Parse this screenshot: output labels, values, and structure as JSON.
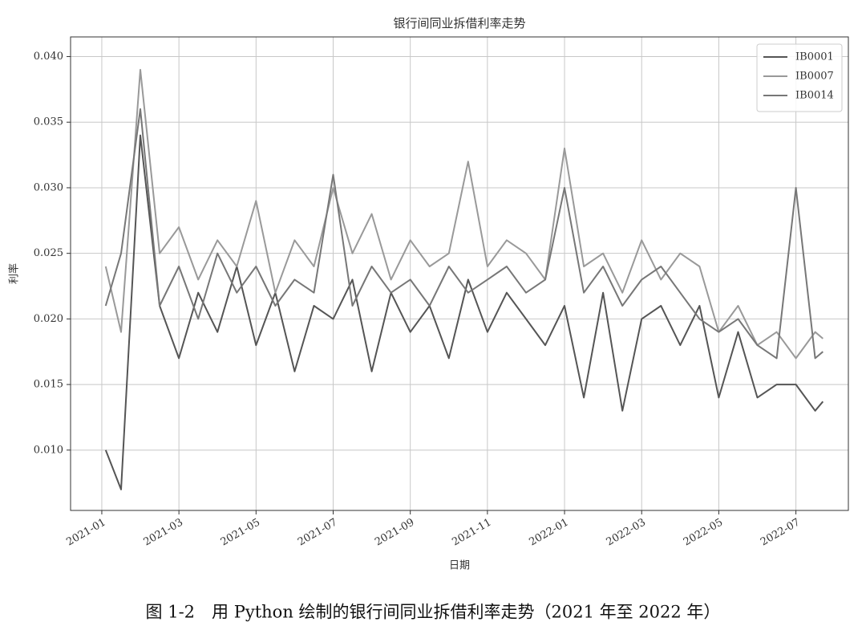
{
  "chart_data": {
    "type": "line",
    "title": "银行间同业拆借利率走势",
    "x_label": "日期",
    "y_label": "利率",
    "caption": "图 1-2　用 Python 绘制的银行间同业拆借利率走势（2021 年至 2022 年）",
    "x": [
      0.1,
      0.5,
      1,
      1.5,
      2,
      2.5,
      3,
      3.5,
      4,
      4.5,
      5,
      5.5,
      6,
      6.5,
      7,
      7.5,
      8,
      8.5,
      9,
      9.5,
      10,
      10.5,
      11,
      11.5,
      12,
      12.5,
      13,
      13.5,
      14,
      14.5,
      15,
      15.5,
      16,
      16.5,
      17,
      17.5,
      18,
      18.5,
      18.7
    ],
    "series": [
      {
        "name": "IB0001",
        "color": "#555555",
        "values": [
          0.01,
          0.007,
          0.034,
          0.021,
          0.017,
          0.022,
          0.019,
          0.024,
          0.018,
          0.022,
          0.016,
          0.021,
          0.02,
          0.023,
          0.016,
          0.022,
          0.019,
          0.021,
          0.017,
          0.023,
          0.019,
          0.022,
          0.02,
          0.018,
          0.021,
          0.014,
          0.022,
          0.013,
          0.02,
          0.021,
          0.018,
          0.021,
          0.014,
          0.019,
          0.014,
          0.015,
          0.015,
          0.013,
          0.0137
        ]
      },
      {
        "name": "IB0007",
        "color": "#999999",
        "values": [
          0.024,
          0.019,
          0.039,
          0.025,
          0.027,
          0.023,
          0.026,
          0.024,
          0.029,
          0.022,
          0.026,
          0.024,
          0.03,
          0.025,
          0.028,
          0.023,
          0.026,
          0.024,
          0.025,
          0.032,
          0.024,
          0.026,
          0.025,
          0.023,
          0.033,
          0.024,
          0.025,
          0.022,
          0.026,
          0.023,
          0.025,
          0.024,
          0.019,
          0.021,
          0.018,
          0.019,
          0.017,
          0.019,
          0.0185
        ]
      },
      {
        "name": "IB0014",
        "color": "#777777",
        "values": [
          0.021,
          0.025,
          0.036,
          0.021,
          0.024,
          0.02,
          0.025,
          0.022,
          0.024,
          0.021,
          0.023,
          0.022,
          0.031,
          0.021,
          0.024,
          0.022,
          0.023,
          0.021,
          0.024,
          0.022,
          0.023,
          0.024,
          0.022,
          0.023,
          0.03,
          0.022,
          0.024,
          0.021,
          0.023,
          0.024,
          0.022,
          0.02,
          0.019,
          0.02,
          0.018,
          0.017,
          0.03,
          0.017,
          0.0175
        ]
      }
    ],
    "xlim": [
      -0.81,
      19.36
    ],
    "xticks": [
      {
        "value": 0,
        "label": "2021-01"
      },
      {
        "value": 2,
        "label": "2021-03"
      },
      {
        "value": 4,
        "label": "2021-05"
      },
      {
        "value": 6,
        "label": "2021-07"
      },
      {
        "value": 8,
        "label": "2021-09"
      },
      {
        "value": 10,
        "label": "2021-11"
      },
      {
        "value": 12,
        "label": "2022-01"
      },
      {
        "value": 14,
        "label": "2022-03"
      },
      {
        "value": 16,
        "label": "2022-05"
      },
      {
        "value": 18,
        "label": "2022-07"
      }
    ],
    "ylim": [
      0.0054,
      0.0415
    ],
    "yticks": [
      {
        "value": 0.01,
        "label": "0.010"
      },
      {
        "value": 0.015,
        "label": "0.015"
      },
      {
        "value": 0.02,
        "label": "0.020"
      },
      {
        "value": 0.025,
        "label": "0.025"
      },
      {
        "value": 0.03,
        "label": "0.030"
      },
      {
        "value": 0.035,
        "label": "0.035"
      },
      {
        "value": 0.04,
        "label": "0.040"
      }
    ],
    "grid": true,
    "legend": "upper-right"
  }
}
